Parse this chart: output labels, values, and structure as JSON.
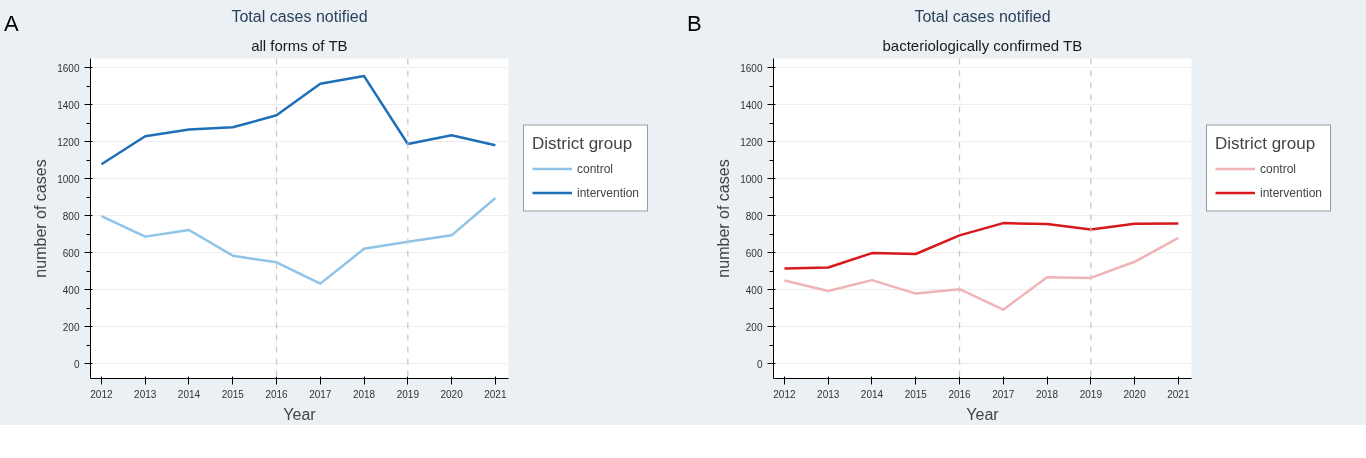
{
  "chart_data": [
    {
      "type": "line",
      "title": "Total cases notified",
      "subtitle": "all forms of TB",
      "xlabel": "Year",
      "ylabel": "number of cases",
      "legend_title": "District group",
      "annotations": [
        "A"
      ],
      "x": [
        2012,
        2013,
        2014,
        2015,
        2016,
        2017,
        2018,
        2019,
        2020,
        2021
      ],
      "series": [
        {
          "name": "control",
          "color": "#8fc3e8",
          "values": [
            798,
            687,
            723,
            584,
            548,
            433,
            621,
            659,
            694,
            896
          ]
        },
        {
          "name": "intervention",
          "color": "#1f6fb8",
          "values": [
            1078,
            1230,
            1266,
            1278,
            1343,
            1513,
            1555,
            1188,
            1235,
            1181
          ]
        }
      ],
      "xlim": [
        2011.75,
        2021.3
      ],
      "ylim": [
        -80,
        1650
      ],
      "xticks": [
        2012,
        2013,
        2014,
        2015,
        2016,
        2017,
        2018,
        2019,
        2020,
        2021
      ],
      "yticks": [
        0,
        {
          "value": 100,
          "label": null
        },
        200,
        {
          "value": 300,
          "label": null
        },
        400,
        {
          "value": 500,
          "label": null
        },
        600,
        {
          "value": 700,
          "label": null
        },
        800,
        {
          "value": 900,
          "label": null
        },
        1000,
        {
          "value": 1100,
          "label": null
        },
        1200,
        {
          "value": 1300,
          "label": null
        },
        1400,
        {
          "value": 1500,
          "label": null
        },
        1600
      ],
      "ref_lines": [
        {
          "axis": "x",
          "value": 2016,
          "color": "#c8c8c8",
          "line_style": "dashed"
        },
        {
          "axis": "x",
          "value": 2019,
          "color": "#c8c8c8",
          "line_style": "dashed"
        }
      ],
      "grid": "y",
      "legend": "right",
      "line_style": "solid",
      "marker": "none"
    },
    {
      "type": "line",
      "title": "Total cases notified",
      "subtitle": "bacteriologically confirmed TB",
      "xlabel": "Year",
      "ylabel": "number of cases",
      "legend_title": "District group",
      "annotations": [
        "B"
      ],
      "x": [
        2012,
        2013,
        2014,
        2015,
        2016,
        2017,
        2018,
        2019,
        2020,
        2021
      ],
      "series": [
        {
          "name": "control",
          "color": "#f0b4b8",
          "values": [
            450,
            393,
            452,
            379,
            403,
            292,
            468,
            464,
            551,
            680
          ]
        },
        {
          "name": "intervention",
          "color": "#d7191c",
          "values": [
            515,
            520,
            598,
            593,
            694,
            760,
            755,
            725,
            757,
            758
          ]
        }
      ],
      "xlim": [
        2011.75,
        2021.3
      ],
      "ylim": [
        -80,
        1650
      ],
      "xticks": [
        2012,
        2013,
        2014,
        2015,
        2016,
        2017,
        2018,
        2019,
        2020,
        2021
      ],
      "yticks": [
        0,
        {
          "value": 100,
          "label": null
        },
        200,
        {
          "value": 300,
          "label": null
        },
        400,
        {
          "value": 500,
          "label": null
        },
        600,
        {
          "value": 700,
          "label": null
        },
        800,
        {
          "value": 900,
          "label": null
        },
        1000,
        {
          "value": 1100,
          "label": null
        },
        1200,
        {
          "value": 1300,
          "label": null
        },
        1400,
        {
          "value": 1500,
          "label": null
        },
        1600
      ],
      "ref_lines": [
        {
          "axis": "x",
          "value": 2016,
          "color": "#c8c8c8",
          "line_style": "dashed"
        },
        {
          "axis": "x",
          "value": 2019,
          "color": "#c8c8c8",
          "line_style": "dashed"
        }
      ],
      "grid": "y",
      "legend": "right",
      "line_style": "solid",
      "marker": "none"
    }
  ]
}
